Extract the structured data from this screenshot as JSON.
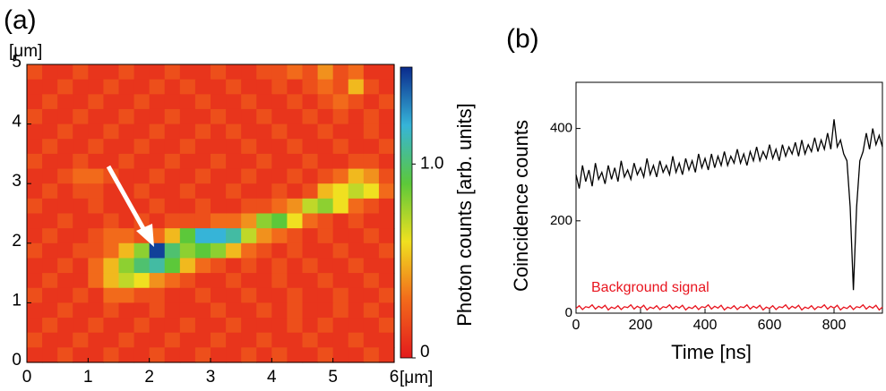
{
  "chart_data": [
    {
      "type": "heatmap",
      "panel_label": "(a)",
      "xlabel": "[μm]",
      "ylabel": "[μm]",
      "xlim": [
        0,
        6
      ],
      "ylim": [
        0,
        5
      ],
      "xticks": [
        0,
        1,
        2,
        3,
        4,
        5,
        6
      ],
      "yticks": [
        0,
        1,
        2,
        3,
        4,
        5
      ],
      "colorbar_label": "Photon counts [arb. units]",
      "zlim": [
        0,
        1.5
      ],
      "zticks": [
        0,
        {
          "value": 1,
          "label": "1.0"
        }
      ],
      "colorscale": [
        "#e31a1c",
        "#f26a1b",
        "#f0e020",
        "#5cc83a",
        "#36b4d8",
        "#0a2a8c"
      ],
      "z": [
        [
          0.2,
          0.1,
          0.1,
          0.2,
          0.1,
          0.1,
          0.2,
          0.1,
          0.1,
          0.2,
          0.1,
          0.1,
          0.2,
          0.1,
          0.1,
          0.2,
          0.2,
          0.3,
          0.2,
          0.4,
          0.2,
          0.3,
          0.1,
          0.1
        ],
        [
          0.1,
          0.1,
          0.2,
          0.1,
          0.1,
          0.2,
          0.1,
          0.1,
          0.2,
          0.1,
          0.2,
          0.1,
          0.1,
          0.2,
          0.1,
          0.1,
          0.2,
          0.1,
          0.2,
          0.3,
          0.2,
          0.5,
          0.2,
          0.1
        ],
        [
          0.1,
          0.2,
          0.1,
          0.1,
          0.2,
          0.1,
          0.1,
          0.2,
          0.1,
          0.1,
          0.1,
          0.2,
          0.1,
          0.1,
          0.2,
          0.1,
          0.1,
          0.2,
          0.1,
          0.2,
          0.3,
          0.2,
          0.1,
          0.2
        ],
        [
          0.2,
          0.1,
          0.1,
          0.2,
          0.1,
          0.1,
          0.2,
          0.1,
          0.1,
          0.2,
          0.1,
          0.1,
          0.2,
          0.1,
          0.1,
          0.2,
          0.1,
          0.1,
          0.2,
          0.1,
          0.2,
          0.1,
          0.2,
          0.1
        ],
        [
          0.1,
          0.1,
          0.2,
          0.1,
          0.1,
          0.2,
          0.1,
          0.1,
          0.2,
          0.1,
          0.1,
          0.2,
          0.1,
          0.2,
          0.1,
          0.1,
          0.2,
          0.1,
          0.1,
          0.2,
          0.1,
          0.1,
          0.2,
          0.1
        ],
        [
          0.1,
          0.2,
          0.1,
          0.1,
          0.2,
          0.1,
          0.1,
          0.2,
          0.1,
          0.1,
          0.2,
          0.1,
          0.1,
          0.1,
          0.2,
          0.1,
          0.1,
          0.2,
          0.1,
          0.1,
          0.2,
          0.1,
          0.1,
          0.2
        ],
        [
          0.2,
          0.1,
          0.1,
          0.2,
          0.1,
          0.1,
          0.2,
          0.1,
          0.1,
          0.2,
          0.1,
          0.1,
          0.2,
          0.1,
          0.1,
          0.2,
          0.1,
          0.1,
          0.2,
          0.1,
          0.1,
          0.2,
          0.2,
          0.1
        ],
        [
          0.1,
          0.1,
          0.2,
          0.3,
          0.3,
          0.2,
          0.1,
          0.1,
          0.2,
          0.1,
          0.1,
          0.2,
          0.1,
          0.1,
          0.2,
          0.1,
          0.1,
          0.2,
          0.1,
          0.2,
          0.3,
          0.5,
          0.4,
          0.2
        ],
        [
          0.1,
          0.2,
          0.1,
          0.2,
          0.2,
          0.1,
          0.1,
          0.2,
          0.1,
          0.1,
          0.2,
          0.1,
          0.1,
          0.2,
          0.1,
          0.1,
          0.2,
          0.1,
          0.2,
          0.5,
          0.6,
          0.7,
          0.6,
          0.3
        ],
        [
          0.2,
          0.1,
          0.1,
          0.1,
          0.2,
          0.1,
          0.1,
          0.1,
          0.2,
          0.1,
          0.1,
          0.2,
          0.1,
          0.1,
          0.2,
          0.2,
          0.3,
          0.4,
          0.7,
          0.8,
          0.6,
          0.3,
          0.2,
          0.1
        ],
        [
          0.1,
          0.1,
          0.2,
          0.1,
          0.1,
          0.2,
          0.1,
          0.2,
          0.1,
          0.2,
          0.2,
          0.2,
          0.3,
          0.3,
          0.4,
          0.8,
          0.9,
          0.6,
          0.3,
          0.2,
          0.1,
          0.2,
          0.1,
          0.1
        ],
        [
          0.1,
          0.2,
          0.1,
          0.1,
          0.2,
          0.3,
          0.3,
          0.2,
          0.3,
          0.5,
          0.9,
          1.2,
          1.2,
          1.1,
          0.7,
          0.4,
          0.3,
          0.2,
          0.1,
          0.2,
          0.1,
          0.1,
          0.2,
          0.1
        ],
        [
          0.2,
          0.1,
          0.1,
          0.2,
          0.2,
          0.3,
          0.5,
          0.8,
          1.45,
          1.0,
          0.8,
          0.9,
          0.8,
          0.5,
          0.3,
          0.2,
          0.1,
          0.2,
          0.1,
          0.1,
          0.2,
          0.1,
          0.1,
          0.2
        ],
        [
          0.1,
          0.1,
          0.2,
          0.1,
          0.3,
          0.5,
          0.8,
          1.0,
          1.1,
          0.9,
          0.5,
          0.3,
          0.2,
          0.1,
          0.2,
          0.1,
          0.2,
          0.1,
          0.2,
          0.1,
          0.1,
          0.2,
          0.1,
          0.1
        ],
        [
          0.1,
          0.2,
          0.1,
          0.1,
          0.3,
          0.5,
          0.7,
          0.6,
          0.4,
          0.3,
          0.2,
          0.1,
          0.1,
          0.2,
          0.1,
          0.1,
          0.2,
          0.1,
          0.1,
          0.2,
          0.1,
          0.1,
          0.2,
          0.1
        ],
        [
          0.2,
          0.1,
          0.1,
          0.2,
          0.1,
          0.3,
          0.3,
          0.2,
          0.2,
          0.1,
          0.1,
          0.2,
          0.1,
          0.1,
          0.2,
          0.1,
          0.1,
          0.2,
          0.1,
          0.1,
          0.2,
          0.1,
          0.1,
          0.2
        ],
        [
          0.1,
          0.1,
          0.2,
          0.1,
          0.1,
          0.2,
          0.1,
          0.1,
          0.2,
          0.1,
          0.1,
          0.1,
          0.2,
          0.1,
          0.1,
          0.2,
          0.1,
          0.2,
          0.1,
          0.1,
          0.2,
          0.1,
          0.2,
          0.1
        ],
        [
          0.1,
          0.2,
          0.1,
          0.1,
          0.2,
          0.1,
          0.1,
          0.2,
          0.1,
          0.1,
          0.2,
          0.1,
          0.1,
          0.2,
          0.1,
          0.1,
          0.1,
          0.2,
          0.1,
          0.2,
          0.1,
          0.1,
          0.1,
          0.2
        ],
        [
          0.2,
          0.1,
          0.1,
          0.2,
          0.1,
          0.1,
          0.2,
          0.1,
          0.1,
          0.2,
          0.1,
          0.1,
          0.2,
          0.1,
          0.1,
          0.2,
          0.1,
          0.1,
          0.2,
          0.1,
          0.1,
          0.2,
          0.1,
          0.1
        ],
        [
          0.1,
          0.1,
          0.2,
          0.1,
          0.1,
          0.2,
          0.1,
          0.1,
          0.2,
          0.1,
          0.1,
          0.2,
          0.1,
          0.1,
          0.2,
          0.1,
          0.2,
          0.1,
          0.1,
          0.2,
          0.1,
          0.1,
          0.2,
          0.1
        ]
      ]
    },
    {
      "type": "line",
      "panel_label": "(b)",
      "xlabel": "Time [ns]",
      "ylabel": "Coincidence counts",
      "xlim": [
        0,
        950
      ],
      "ylim": [
        0,
        500
      ],
      "xticks": [
        0,
        200,
        400,
        600,
        800
      ],
      "yticks": [
        0,
        200,
        400
      ],
      "x": [
        0,
        10,
        20,
        30,
        40,
        50,
        60,
        70,
        80,
        90,
        100,
        110,
        120,
        130,
        140,
        150,
        160,
        170,
        180,
        190,
        200,
        210,
        220,
        230,
        240,
        250,
        260,
        270,
        280,
        290,
        300,
        310,
        320,
        330,
        340,
        350,
        360,
        370,
        380,
        390,
        400,
        410,
        420,
        430,
        440,
        450,
        460,
        470,
        480,
        490,
        500,
        510,
        520,
        530,
        540,
        550,
        560,
        570,
        580,
        590,
        600,
        610,
        620,
        630,
        640,
        650,
        660,
        670,
        680,
        690,
        700,
        710,
        720,
        730,
        740,
        750,
        760,
        770,
        780,
        790,
        800,
        810,
        820,
        830,
        840,
        850,
        860,
        870,
        880,
        890,
        900,
        910,
        920,
        930,
        940,
        950
      ],
      "series": [
        {
          "color": "#000000",
          "values": [
            300,
            270,
            320,
            285,
            310,
            275,
            325,
            290,
            305,
            280,
            320,
            290,
            315,
            285,
            330,
            295,
            310,
            290,
            325,
            300,
            315,
            295,
            335,
            300,
            320,
            295,
            330,
            305,
            320,
            300,
            340,
            305,
            325,
            300,
            335,
            310,
            330,
            305,
            345,
            315,
            335,
            310,
            345,
            315,
            340,
            320,
            350,
            320,
            340,
            325,
            355,
            325,
            345,
            320,
            350,
            330,
            360,
            330,
            350,
            335,
            365,
            335,
            355,
            330,
            365,
            340,
            360,
            345,
            370,
            340,
            375,
            345,
            365,
            350,
            380,
            350,
            375,
            355,
            390,
            355,
            420,
            360,
            375,
            345,
            330,
            230,
            50,
            230,
            330,
            350,
            390,
            355,
            400,
            365,
            385,
            360
          ]
        },
        {
          "name": "Background signal",
          "color": "#e8141e",
          "values": [
            10,
            16,
            8,
            14,
            12,
            18,
            9,
            15,
            11,
            17,
            7,
            13,
            10,
            16,
            8,
            14,
            12,
            18,
            9,
            15,
            11,
            17,
            7,
            13,
            10,
            16,
            8,
            14,
            12,
            18,
            9,
            15,
            11,
            17,
            7,
            13,
            10,
            16,
            8,
            14,
            12,
            18,
            9,
            15,
            11,
            17,
            7,
            13,
            10,
            16,
            8,
            14,
            12,
            18,
            9,
            15,
            11,
            17,
            7,
            13,
            10,
            16,
            8,
            14,
            12,
            18,
            9,
            15,
            11,
            17,
            7,
            13,
            10,
            16,
            8,
            14,
            12,
            18,
            9,
            15,
            11,
            17,
            7,
            13,
            10,
            16,
            8,
            14,
            12,
            18,
            9,
            15,
            11,
            17,
            7,
            13
          ]
        }
      ]
    }
  ]
}
